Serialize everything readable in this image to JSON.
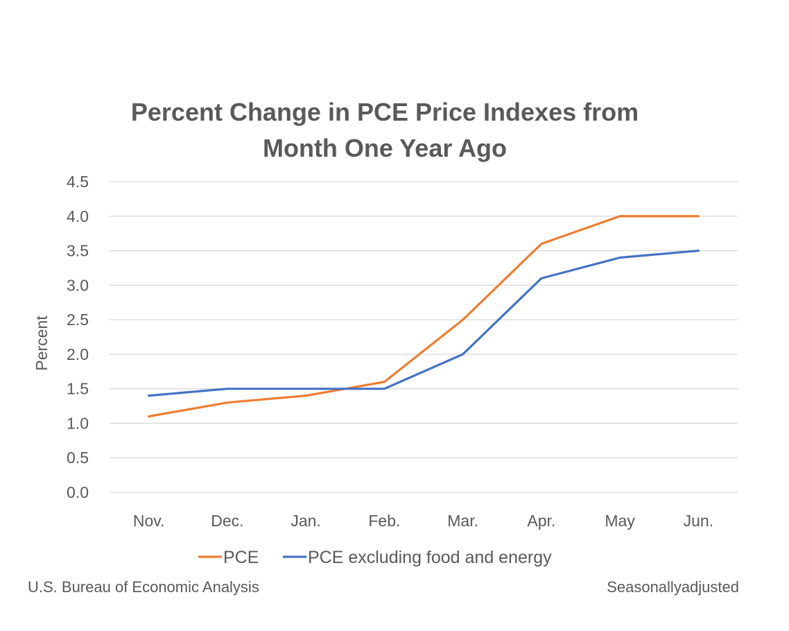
{
  "chart_data": {
    "type": "line",
    "title_line1": "Percent Change in PCE Price Indexes from",
    "title_line2": "Month One Year Ago",
    "ylabel": "Percent",
    "xlabel": "",
    "categories": [
      "Nov.",
      "Dec.",
      "Jan.",
      "Feb.",
      "Mar.",
      "Apr.",
      "May",
      "Jun."
    ],
    "ylim": [
      0,
      4.5
    ],
    "yticks": [
      "0.0",
      "0.5",
      "1.0",
      "1.5",
      "2.0",
      "2.5",
      "3.0",
      "3.5",
      "4.0",
      "4.5"
    ],
    "grid": true,
    "legend_position": "bottom",
    "series": [
      {
        "name": "PCE",
        "color": "#ED7D31",
        "values": [
          1.1,
          1.3,
          1.4,
          1.6,
          2.5,
          3.6,
          4.0,
          4.0
        ]
      },
      {
        "name": "PCE excluding food and energy",
        "color": "#4472C4",
        "values": [
          1.4,
          1.5,
          1.5,
          1.5,
          2.0,
          3.1,
          3.4,
          3.5
        ]
      }
    ]
  },
  "footer": {
    "source": "U.S. Bureau of Economic Analysis",
    "note": "Seasonallyadjusted"
  }
}
